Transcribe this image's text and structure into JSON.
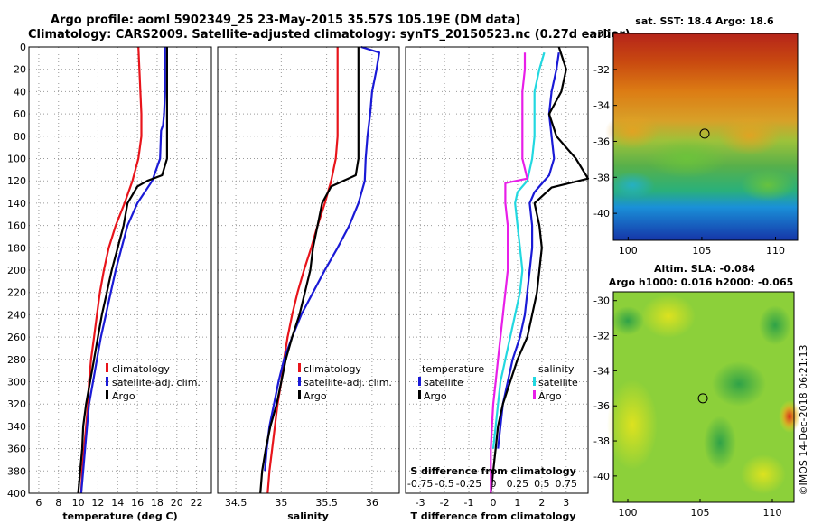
{
  "header": {
    "title_line1": "Argo profile: aoml 5902349_25 23-May-2015 35.57S 105.19E (DM data)",
    "title_line2": "Climatology: CARS2009. Satellite-adjusted climatology: synTS_20150523.nc (0.27d earlier)"
  },
  "colors": {
    "climatology": "#e8141b",
    "satellite": "#1a1ad6",
    "argo": "#000000",
    "salinity_satellite": "#22d8e0",
    "salinity_argo": "#e81ee8",
    "grid": "#9a9a9a"
  },
  "chart_data": [
    {
      "id": "temperature",
      "type": "line",
      "xlabel": "temperature (deg C)",
      "ylabel": "",
      "xlim": [
        5,
        23.5
      ],
      "ylim": [
        400,
        0
      ],
      "xticks": [
        6,
        8,
        10,
        12,
        14,
        16,
        18,
        20,
        22
      ],
      "xticklabels": [
        "6",
        "8",
        "10",
        "12",
        "14",
        "16",
        "18",
        "20",
        "22"
      ],
      "yticks": [
        0,
        20,
        40,
        60,
        80,
        100,
        120,
        140,
        160,
        180,
        200,
        220,
        240,
        260,
        280,
        300,
        320,
        340,
        360,
        380,
        400
      ],
      "yticklabels": [
        "0",
        "20",
        "40",
        "60",
        "80",
        "100",
        "120",
        "140",
        "160",
        "180",
        "200",
        "220",
        "240",
        "260",
        "280",
        "300",
        "320",
        "340",
        "360",
        "380",
        "400"
      ],
      "grid": true,
      "legend": {
        "position": "lower-right",
        "entries": [
          "climatology",
          "satellite-adj. clim.",
          "Argo"
        ]
      },
      "series": [
        {
          "name": "climatology",
          "color": "#e8141b",
          "x": [
            16.1,
            16.2,
            16.3,
            16.4,
            16.4,
            16.1,
            15.5,
            14.7,
            13.8,
            13.1,
            12.6,
            12.2,
            11.9,
            11.6,
            11.3,
            11.1,
            11.0,
            10.8,
            10.6,
            10.4,
            10.3
          ],
          "y": [
            0,
            20,
            40,
            60,
            80,
            100,
            120,
            140,
            160,
            180,
            200,
            220,
            240,
            260,
            280,
            300,
            320,
            340,
            360,
            380,
            400
          ]
        },
        {
          "name": "satellite-adj. clim.",
          "color": "#1a1ad6",
          "x": [
            18.8,
            18.8,
            18.8,
            18.7,
            18.6,
            18.4,
            18.3,
            17.5,
            16.0,
            15.0,
            14.4,
            13.8,
            13.3,
            12.8,
            12.3,
            11.9,
            11.5,
            11.1,
            10.9,
            10.7,
            10.5,
            10.3
          ],
          "y": [
            0,
            20,
            40,
            60,
            70,
            75,
            100,
            120,
            140,
            160,
            180,
            200,
            220,
            240,
            260,
            280,
            300,
            320,
            340,
            360,
            380,
            400
          ]
        },
        {
          "name": "Argo",
          "color": "#000000",
          "x": [
            19.0,
            19.0,
            19.0,
            19.0,
            19.0,
            19.0,
            18.5,
            17.0,
            16.0,
            15.0,
            14.6,
            14.0,
            13.4,
            12.9,
            12.4,
            12.0,
            11.6,
            11.2,
            10.8,
            10.5,
            10.4,
            10.2,
            10.1,
            10.0
          ],
          "y": [
            0,
            20,
            40,
            60,
            80,
            100,
            115,
            120,
            125,
            140,
            160,
            180,
            200,
            220,
            240,
            260,
            280,
            300,
            320,
            340,
            360,
            380,
            390,
            400
          ]
        }
      ]
    },
    {
      "id": "salinity",
      "type": "line",
      "xlabel": "salinity",
      "ylabel": "",
      "xlim": [
        34.3,
        36.3
      ],
      "ylim": [
        400,
        0
      ],
      "xticks": [
        34.5,
        35,
        35.5,
        36
      ],
      "xticklabels": [
        "34.5",
        "35",
        "35.5",
        "36"
      ],
      "grid": true,
      "legend": {
        "position": "lower-right",
        "entries": [
          "climatology",
          "satellite-adj. clim.",
          "Argo"
        ]
      },
      "series": [
        {
          "name": "climatology",
          "color": "#e8141b",
          "x": [
            35.62,
            35.62,
            35.62,
            35.62,
            35.62,
            35.6,
            35.55,
            35.48,
            35.4,
            35.33,
            35.25,
            35.18,
            35.12,
            35.07,
            35.03,
            35.0,
            34.96,
            34.93,
            34.9,
            34.87,
            34.85
          ],
          "y": [
            0,
            20,
            40,
            60,
            80,
            100,
            120,
            140,
            160,
            180,
            200,
            220,
            240,
            260,
            280,
            300,
            320,
            340,
            360,
            380,
            400
          ]
        },
        {
          "name": "satellite-adj. clim.",
          "color": "#1a1ad6",
          "x": [
            35.88,
            36.08,
            36.05,
            36.0,
            35.98,
            35.95,
            35.93,
            35.92,
            35.85,
            35.75,
            35.62,
            35.48,
            35.35,
            35.22,
            35.12,
            35.03,
            34.97,
            34.92,
            34.87,
            34.84,
            34.82
          ],
          "y": [
            0,
            5,
            20,
            40,
            60,
            80,
            100,
            120,
            140,
            160,
            180,
            200,
            220,
            240,
            260,
            280,
            300,
            320,
            340,
            360,
            380
          ]
        },
        {
          "name": "Argo",
          "color": "#000000",
          "x": [
            35.85,
            35.85,
            35.85,
            35.85,
            35.85,
            35.85,
            35.82,
            35.55,
            35.45,
            35.4,
            35.35,
            35.32,
            35.26,
            35.2,
            35.12,
            35.05,
            35.0,
            34.95,
            34.88,
            34.83,
            34.79,
            34.77
          ],
          "y": [
            0,
            20,
            40,
            60,
            80,
            100,
            115,
            125,
            140,
            160,
            180,
            200,
            220,
            240,
            260,
            280,
            300,
            320,
            340,
            360,
            380,
            400
          ]
        }
      ]
    },
    {
      "id": "difference",
      "type": "line",
      "xlabel": "T difference from climatology",
      "x2label": "S difference from climatology",
      "ylabel": "",
      "xlim": [
        -3.6,
        3.9
      ],
      "ylim": [
        400,
        0
      ],
      "xticks": [
        -3,
        -2,
        -1,
        0,
        1,
        2,
        3
      ],
      "xticklabels": [
        "-3",
        "-2",
        "-1",
        "0",
        "1",
        "2",
        "3"
      ],
      "x2ticks": [
        -3,
        -2,
        -1,
        0,
        1,
        2,
        3
      ],
      "x2ticklabels": [
        "-0.75",
        "-0.5",
        "-0.25",
        "0",
        "0.25",
        "0.5",
        "0.75"
      ],
      "grid": true,
      "legend": {
        "position": "lower-center",
        "groups": [
          {
            "title": "temperature",
            "entries": [
              "satellite",
              "Argo"
            ]
          },
          {
            "title": "salinity",
            "entries": [
              "satellite",
              "Argo"
            ]
          }
        ]
      },
      "series": [
        {
          "name": "temperature satellite",
          "color": "#1a1ad6",
          "x": [
            2.7,
            2.6,
            2.4,
            2.3,
            2.4,
            2.5,
            2.3,
            1.7,
            1.5,
            1.6,
            1.6,
            1.5,
            1.4,
            1.3,
            1.1,
            0.8,
            0.6,
            0.4,
            0.3,
            0.2
          ],
          "y": [
            5,
            20,
            40,
            60,
            80,
            100,
            115,
            130,
            140,
            160,
            180,
            200,
            220,
            240,
            260,
            280,
            300,
            320,
            340,
            360
          ]
        },
        {
          "name": "temperature Argo",
          "color": "#000000",
          "x": [
            2.7,
            3.0,
            2.8,
            2.3,
            2.6,
            3.4,
            3.9,
            2.4,
            1.7,
            1.9,
            2.0,
            1.9,
            1.8,
            1.6,
            1.4,
            1.0,
            0.7,
            0.4,
            0.2,
            0.1,
            0.0,
            -0.1
          ],
          "y": [
            0,
            20,
            40,
            60,
            80,
            100,
            118,
            126,
            140,
            160,
            180,
            200,
            220,
            240,
            260,
            280,
            300,
            320,
            340,
            360,
            380,
            400
          ]
        },
        {
          "name": "salinity satellite",
          "color": "#22d8e0",
          "x": [
            2.1,
            1.9,
            1.7,
            1.7,
            1.7,
            1.6,
            1.4,
            1.0,
            0.9,
            1.0,
            1.1,
            1.2,
            1.1,
            0.9,
            0.7,
            0.5,
            0.3,
            0.2,
            0.1,
            0.0
          ],
          "y": [
            5,
            20,
            40,
            60,
            80,
            100,
            120,
            130,
            140,
            160,
            180,
            200,
            220,
            240,
            260,
            280,
            300,
            320,
            340,
            360
          ]
        },
        {
          "name": "salinity Argo",
          "color": "#e81ee8",
          "x": [
            1.3,
            1.3,
            1.2,
            1.2,
            1.2,
            1.2,
            1.4,
            0.5,
            0.5,
            0.6,
            0.6,
            0.6,
            0.5,
            0.4,
            0.3,
            0.2,
            0.1,
            0.0,
            -0.05,
            -0.1,
            -0.1
          ],
          "y": [
            5,
            20,
            40,
            60,
            80,
            100,
            118,
            122,
            140,
            160,
            180,
            200,
            220,
            240,
            260,
            280,
            300,
            320,
            340,
            360,
            400
          ]
        }
      ]
    },
    {
      "id": "sst-map",
      "type": "heatmap",
      "title": "sat. SST: 18.4 Argo: 18.6",
      "xlim": [
        99,
        111.5
      ],
      "ylim": [
        -41.5,
        -30
      ],
      "xticks": [
        100,
        105,
        110
      ],
      "xticklabels": [
        "100",
        "105",
        "110"
      ],
      "yticks": [
        -30,
        -32,
        -34,
        -36,
        -38,
        -40
      ],
      "yticklabels": [
        "-30",
        "-32",
        "-34",
        "-36",
        "-38",
        "-40"
      ],
      "marker": {
        "lon": 105.19,
        "lat": -35.57
      }
    },
    {
      "id": "sla-map",
      "type": "heatmap",
      "title": "Altim. SLA: -0.084",
      "subtitle": "Argo h1000: 0.016 h2000: -0.065",
      "xlim": [
        99,
        111.5
      ],
      "ylim": [
        -41.5,
        -29.5
      ],
      "xticks": [
        100,
        105,
        110
      ],
      "xticklabels": [
        "100",
        "105",
        "110"
      ],
      "yticks": [
        -30,
        -32,
        -34,
        -36,
        -38,
        -40
      ],
      "yticklabels": [
        "-30",
        "-32",
        "-34",
        "-36",
        "-38",
        "-40"
      ],
      "marker": {
        "lon": 105.19,
        "lat": -35.57
      },
      "annotation": "©IMOS 14-Dec-2018 06:21:13"
    }
  ]
}
